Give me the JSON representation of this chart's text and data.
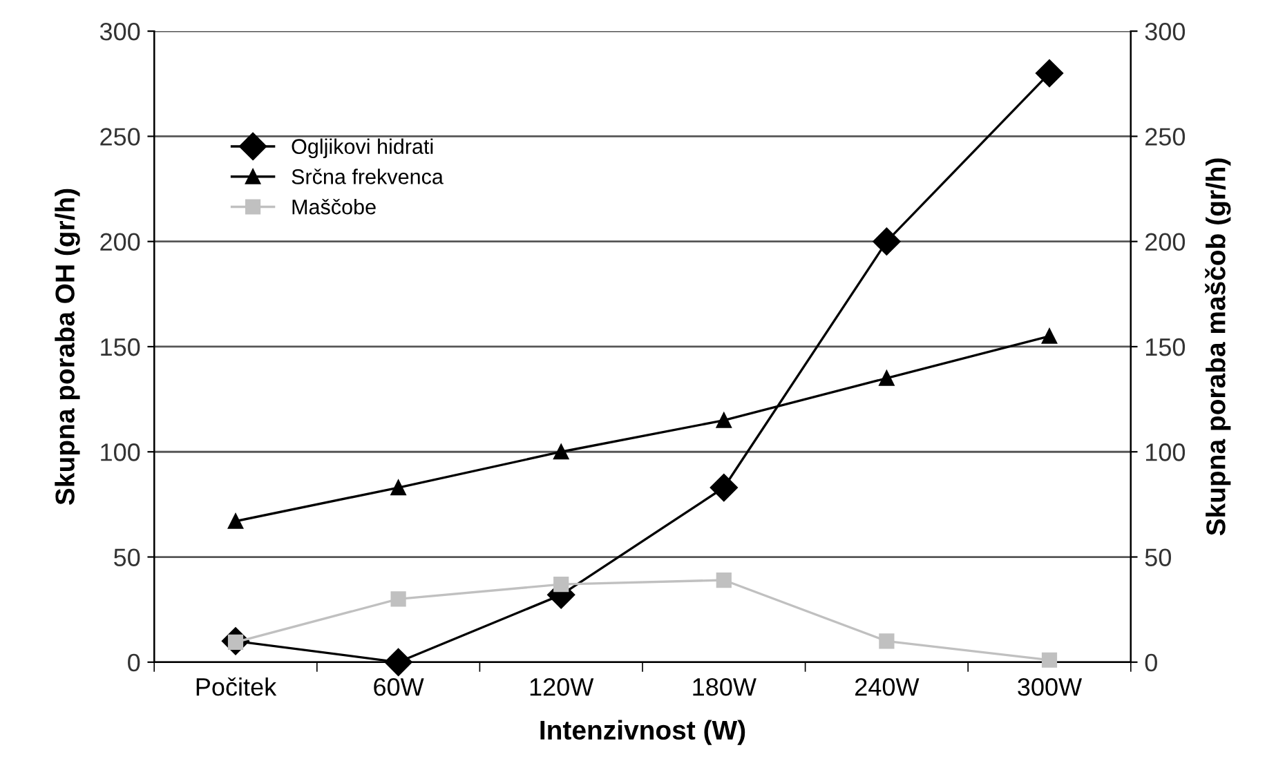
{
  "chart_data": {
    "type": "line",
    "xlabel": "Intenzivnost (W)",
    "ylabel": "Skupna poraba OH (gr/h)",
    "y2label": "Skupna poraba maščob (gr/h)",
    "categories": [
      "Počitek",
      "60W",
      "120W",
      "180W",
      "240W",
      "300W"
    ],
    "series": [
      {
        "name": "Ogljikovi hidrati",
        "color": "#000000",
        "marker": "diamond",
        "values": [
          10,
          0,
          32,
          83,
          200,
          280
        ]
      },
      {
        "name": "Srčna frekvenca",
        "color": "#000000",
        "marker": "triangle",
        "values": [
          67,
          83,
          100,
          115,
          135,
          155
        ]
      },
      {
        "name": "Maščobe",
        "color": "#c0c0c0",
        "marker": "square",
        "axis": "y2",
        "values": [
          9.5,
          30,
          37,
          39,
          10,
          1
        ]
      }
    ],
    "ylim": [
      0,
      300
    ],
    "yticks": [
      0,
      50,
      100,
      150,
      200,
      250,
      300
    ],
    "y2lim": [
      0,
      300
    ],
    "y2ticks": [
      0,
      50,
      100,
      150,
      200,
      250,
      300
    ],
    "grid": "y",
    "legend": "top left"
  }
}
